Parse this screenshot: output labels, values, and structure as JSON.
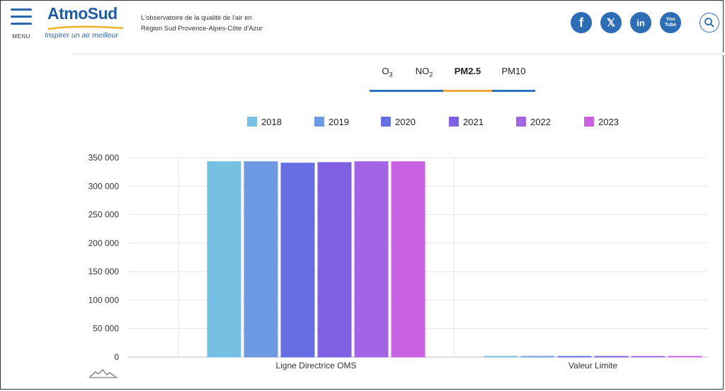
{
  "header": {
    "menu_label": "MENU",
    "logo_name": "AtmoSud",
    "logo_tagline": "Inspirer un air meilleur",
    "tagline_line1": "L'observatoire de la qualité de l'air en",
    "tagline_line2": "Région Sud Provence-Alpes-Côte d'Azur",
    "social": [
      {
        "icon": "facebook-icon",
        "glyph": "f"
      },
      {
        "icon": "x-twitter-icon",
        "glyph": "𝕏"
      },
      {
        "icon": "linkedin-icon",
        "glyph": "in"
      },
      {
        "icon": "youtube-icon",
        "glyph": "You Tube"
      }
    ]
  },
  "tabs": [
    {
      "label": "O",
      "sub": "3",
      "active": false
    },
    {
      "label": "NO",
      "sub": "2",
      "active": false
    },
    {
      "label": "PM2.5",
      "sub": "",
      "active": true
    },
    {
      "label": "PM10",
      "sub": "",
      "active": false
    }
  ],
  "chart_data": {
    "type": "bar",
    "categories": [
      "Ligne Directrice OMS",
      "Valeur Limite"
    ],
    "series": [
      {
        "name": "2018",
        "color": "#76c1e3",
        "values": [
          343000,
          100
        ]
      },
      {
        "name": "2019",
        "color": "#6d9ae3",
        "values": [
          343000,
          100
        ]
      },
      {
        "name": "2020",
        "color": "#676de3",
        "values": [
          340500,
          100
        ]
      },
      {
        "name": "2021",
        "color": "#7f5fe2",
        "values": [
          341500,
          100
        ]
      },
      {
        "name": "2022",
        "color": "#a464e6",
        "values": [
          343000,
          100
        ]
      },
      {
        "name": "2023",
        "color": "#c862e3",
        "values": [
          343000,
          100
        ]
      }
    ],
    "yticks": [
      "0",
      "50 000",
      "100 000",
      "150 000",
      "200 000",
      "250 000",
      "300 000",
      "350 000"
    ],
    "ylim": [
      0,
      350000
    ],
    "grid": true,
    "legend_position": "top"
  }
}
